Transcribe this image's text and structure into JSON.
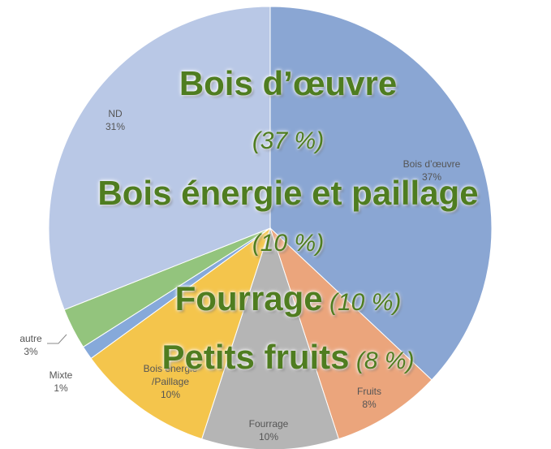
{
  "chart_data": {
    "type": "pie",
    "categories": [
      "Bois d’œuvre",
      "Fruits",
      "Fourrage",
      "Bois énergie\n/Paillage",
      "Mixte",
      "autre",
      "ND"
    ],
    "values": [
      37,
      8,
      10,
      10,
      1,
      3,
      31
    ],
    "value_labels": [
      "37%",
      "8%",
      "10%",
      "10%",
      "1%",
      "3%",
      "31%"
    ],
    "colors": [
      "#8aa6d3",
      "#eba57c",
      "#b5b5b5",
      "#f4c54c",
      "#86a9da",
      "#93c47d",
      "#b9c8e6"
    ],
    "annotations": [
      [
        {
          "text": "Bois d’œuvre",
          "style": "bold"
        }
      ],
      [
        {
          "text": "(37 %)",
          "style": "italic"
        }
      ],
      [
        {
          "text": "Bois énergie et paillage",
          "style": "bold"
        }
      ],
      [
        {
          "text": "(10 %)",
          "style": "italic"
        }
      ],
      [
        {
          "text": "Fourrage",
          "style": "bold"
        },
        {
          "text": " (10 %)",
          "style": "italic"
        }
      ],
      [
        {
          "text": "Petits fruits",
          "style": "bold"
        },
        {
          "text": " (8 %)",
          "style": "italic"
        }
      ]
    ]
  }
}
